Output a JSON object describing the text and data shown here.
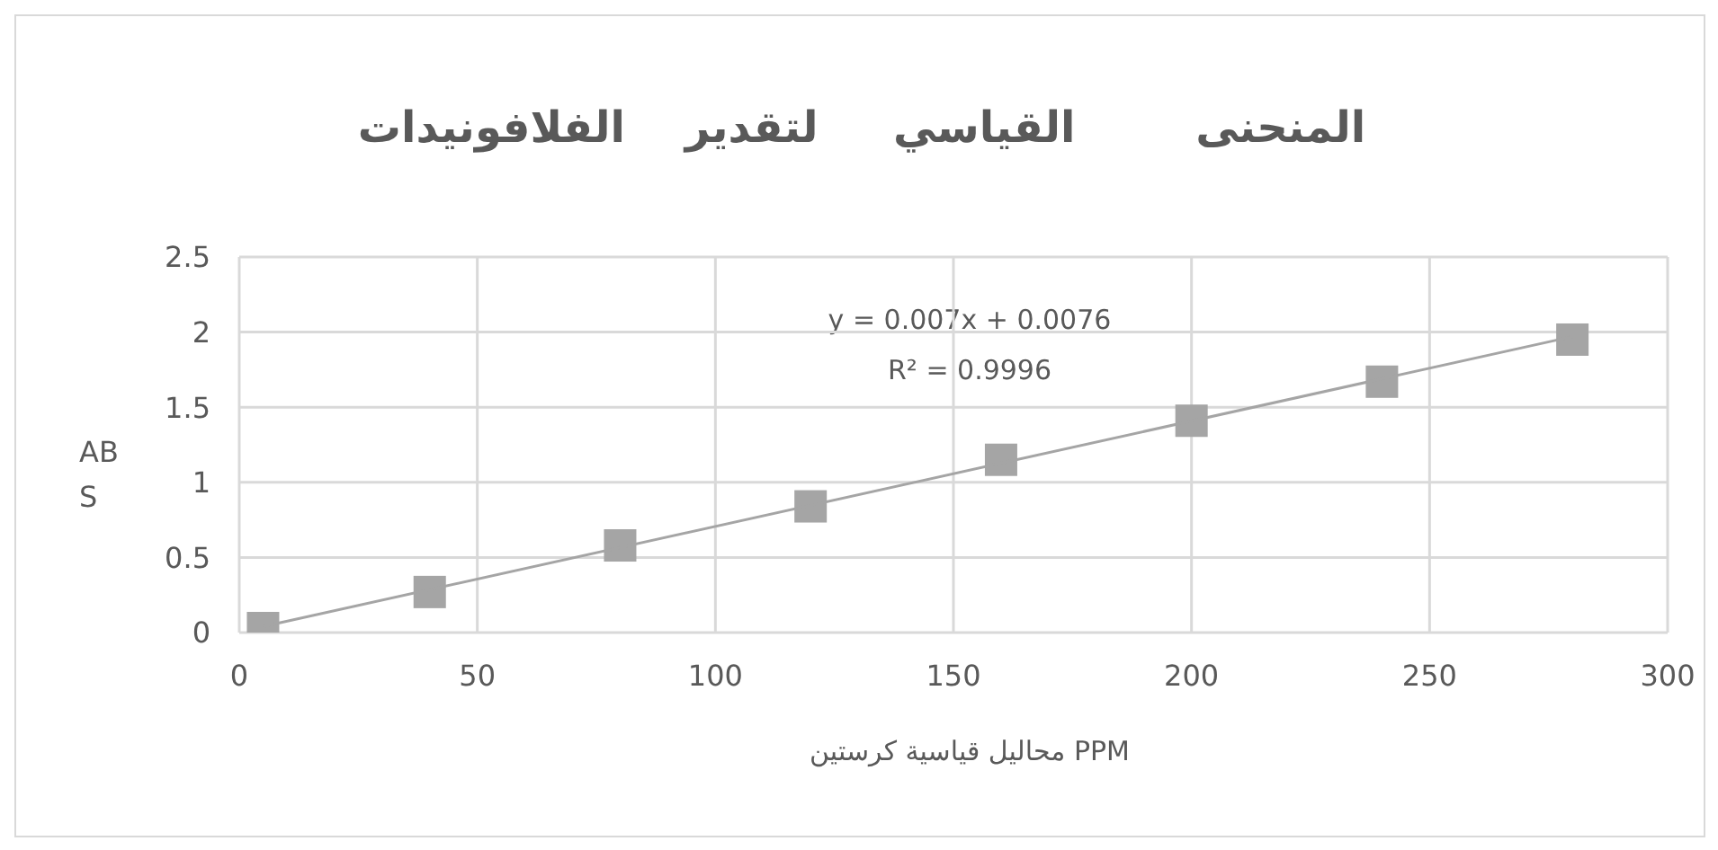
{
  "chart_data": {
    "type": "scatter",
    "title": "المنحنى        القياسي     لتقدير    الفلافونيدات",
    "xlabel": "محاليل قياسية كرستين PPM",
    "ylabel": "ABS",
    "x": [
      5,
      40,
      80,
      120,
      160,
      200,
      240,
      280
    ],
    "series": [
      {
        "color": "#a5a5a5",
        "values": [
          0.03,
          0.27,
          0.58,
          0.84,
          1.15,
          1.41,
          1.67,
          1.95
        ]
      },
      {
        "type": "line",
        "color": "#a5a5a5",
        "marker": "none",
        "x": [
          5,
          280
        ],
        "values": [
          0.04,
          1.97
        ]
      }
    ],
    "annotations": [
      "y = 0.007x + 0.0076",
      "R² = 0.9996"
    ],
    "xlim": [
      0,
      300
    ],
    "xticks": [
      0,
      50,
      100,
      150,
      200,
      250,
      300
    ],
    "ylim": [
      0,
      2.5
    ],
    "yticks": [
      0,
      0.5,
      1,
      1.5,
      2,
      2.5
    ],
    "grid": true,
    "legend": false,
    "marker": "square"
  }
}
